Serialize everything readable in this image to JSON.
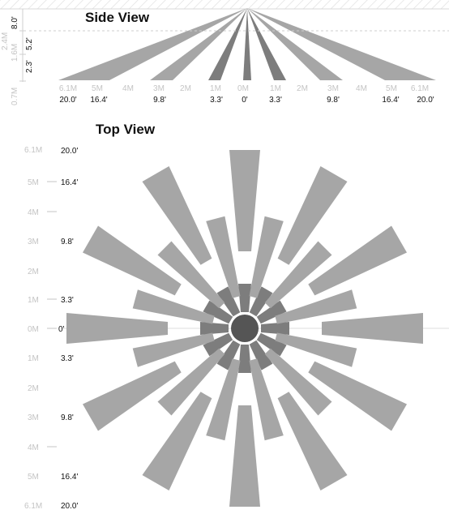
{
  "side_view": {
    "title": "Side View",
    "vertical_labels": [
      "8.0'",
      "5.2'",
      "2.3'",
      "2.4M",
      "1.6M",
      "0.7M"
    ],
    "meter_labels": [
      "6.1M",
      "5M",
      "4M",
      "3M",
      "2M",
      "1M",
      "0M",
      "1M",
      "2M",
      "3M",
      "4M",
      "5M",
      "6.1M"
    ],
    "feet_labels": [
      "20.0'",
      "16.4'",
      "9.8'",
      "3.3'",
      "0'",
      "3.3'",
      "9.8'",
      "16.4'",
      "20.0'"
    ]
  },
  "top_view": {
    "title": "Top View",
    "meter_labels": [
      "6.1M",
      "5M",
      "4M",
      "3M",
      "2M",
      "1M",
      "0M",
      "1M",
      "2M",
      "3M",
      "4M",
      "5M",
      "6.1M"
    ],
    "feet_labels": [
      "20.0'",
      "16.4'",
      "9.8'",
      "3.3'",
      "0'",
      "3.3'",
      "9.8'",
      "16.4'",
      "20.0'"
    ]
  },
  "colors": {
    "zone_dark": "#7d7d7d",
    "zone_light": "#a6a6a6",
    "center": "#555555",
    "faint_text": "#c4c4c4"
  }
}
